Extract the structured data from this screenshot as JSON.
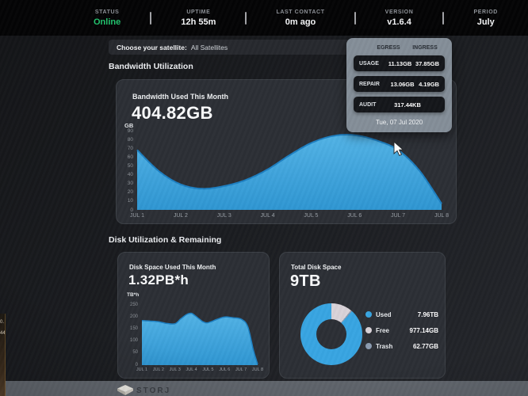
{
  "status_bar": {
    "items": [
      {
        "label": "STATUS",
        "value": "Online"
      },
      {
        "label": "UPTIME",
        "value": "12h 55m"
      },
      {
        "label": "LAST CONTACT",
        "value": "0m ago"
      },
      {
        "label": "VERSION",
        "value": "v1.6.4"
      },
      {
        "label": "PERIOD",
        "value": "July"
      }
    ]
  },
  "satellite_selector": {
    "label": "Choose your satellite:",
    "value": "All Satellites"
  },
  "headings": {
    "bandwidth": "Bandwidth Utilization",
    "disk": "Disk Utilization & Remaining"
  },
  "bandwidth_card": {
    "title": "Bandwidth Used This Month",
    "value": "404.82GB",
    "unit": "GB"
  },
  "disk_card": {
    "title": "Disk Space Used This Month",
    "value": "1.32PB*h",
    "unit": "TB*h"
  },
  "total_card": {
    "title": "Total Disk Space",
    "value": "9TB",
    "legend": [
      {
        "label": "Used",
        "value": "7.96TB"
      },
      {
        "label": "Free",
        "value": "977.14GB"
      },
      {
        "label": "Trash",
        "value": "62.77GB"
      }
    ]
  },
  "tooltip": {
    "egress_header": "EGRESS",
    "ingress_header": "INGRESS",
    "rows": [
      {
        "label": "USAGE",
        "egress": "11.13GB",
        "ingress": "37.85GB"
      },
      {
        "label": "REPAIR",
        "egress": "13.06GB",
        "ingress": "4.19GB"
      },
      {
        "label": "AUDIT",
        "egress": "317.44KB",
        "ingress": ""
      }
    ],
    "date": "Tue, 07 Jul 2020"
  },
  "footer": {
    "brand": "STORJ"
  },
  "screen_edge_fragments": {
    "a": "0.",
    "b": "44"
  },
  "colors": {
    "accent_blue": "#40a8e0",
    "line_blue": "#1d7fc2",
    "online_green": "#21c36d",
    "donut_used": "#38a5e2",
    "donut_free": "#d8d2d8",
    "donut_trash": "#8b9bb0",
    "card_bg": "#2c2f35",
    "tooltip_bg": "#848e98"
  },
  "chart_data": [
    {
      "type": "area",
      "title": "Bandwidth Used This Month",
      "total": "404.82GB",
      "ylabel": "GB",
      "ylim": [
        0,
        90
      ],
      "yticks": [
        0,
        10,
        20,
        30,
        40,
        50,
        60,
        70,
        80,
        90
      ],
      "x_labels": [
        "JUL 1",
        "JUL 2",
        "JUL 3",
        "JUL 4",
        "JUL 5",
        "JUL 6",
        "JUL 7",
        "JUL 8"
      ],
      "daily_values": [
        68,
        29,
        27,
        46,
        76,
        85,
        68,
        7
      ],
      "curve_points": [
        [
          1,
          68
        ],
        [
          1.5,
          44
        ],
        [
          2,
          29
        ],
        [
          2.5,
          24
        ],
        [
          3,
          27
        ],
        [
          3.5,
          34
        ],
        [
          4,
          46
        ],
        [
          4.5,
          62
        ],
        [
          5,
          76
        ],
        [
          5.5,
          84
        ],
        [
          6,
          85
        ],
        [
          6.5,
          79
        ],
        [
          7,
          68
        ],
        [
          7.5,
          44
        ],
        [
          8,
          7
        ]
      ],
      "grid": false,
      "legend_position": "none"
    },
    {
      "type": "area",
      "title": "Disk Space Used This Month",
      "total": "1.32PB*h",
      "ylabel": "TB*h",
      "ylim": [
        0,
        250
      ],
      "yticks": [
        0,
        50,
        100,
        150,
        200,
        250
      ],
      "x_labels": [
        "JUL 1",
        "JUL 2",
        "JUL 3",
        "JUL 4",
        "JUL 5",
        "JUL 6",
        "JUL 7",
        "JUL 8"
      ],
      "daily_values": [
        185,
        180,
        172,
        215,
        176,
        200,
        191,
        3
      ],
      "curve_points": [
        [
          1,
          185
        ],
        [
          1.5,
          183
        ],
        [
          2,
          180
        ],
        [
          2.5,
          173
        ],
        [
          3,
          172
        ],
        [
          3.35,
          192
        ],
        [
          3.7,
          210
        ],
        [
          4,
          215
        ],
        [
          4.35,
          198
        ],
        [
          4.7,
          180
        ],
        [
          5,
          176
        ],
        [
          5.5,
          189
        ],
        [
          6,
          200
        ],
        [
          6.5,
          197
        ],
        [
          7,
          191
        ],
        [
          7.4,
          160
        ],
        [
          7.75,
          60
        ],
        [
          8,
          4
        ]
      ],
      "grid": false,
      "legend_position": "none"
    },
    {
      "type": "pie",
      "subtype": "donut",
      "title": "Total Disk Space",
      "total": "9TB",
      "labels": [
        "Used",
        "Free",
        "Trash"
      ],
      "values": [
        "7.96TB",
        "977.14GB",
        "62.77GB"
      ],
      "percents": [
        88.4,
        10.9,
        0.7
      ],
      "colors": [
        "#38a5e2",
        "#d8d2d8",
        "#8b9bb0"
      ],
      "legend_position": "right"
    }
  ]
}
